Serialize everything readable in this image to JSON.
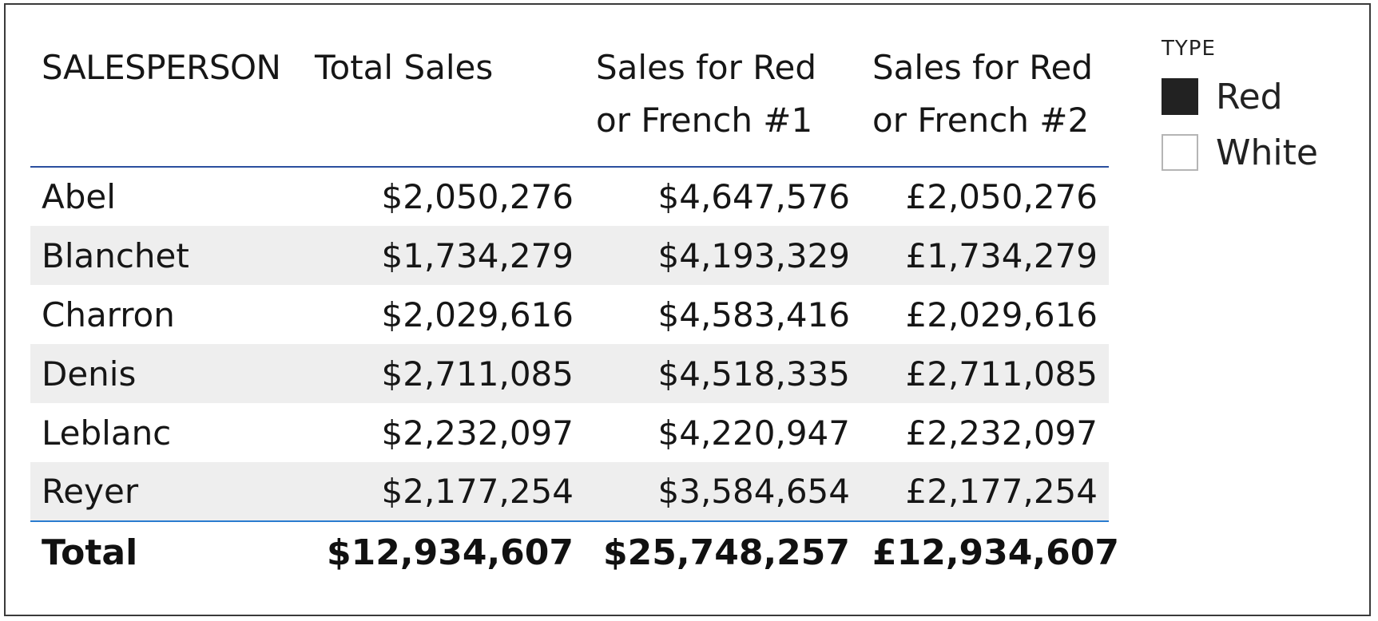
{
  "table": {
    "columns": [
      "SALESPERSON",
      "Total Sales",
      "Sales for Red or French #1",
      "Sales for Red or French #2"
    ],
    "header_lines": {
      "red1_line1": "Sales for Red",
      "red1_line2": "or French #1",
      "red2_line1": "Sales for Red",
      "red2_line2": "or French #2"
    },
    "rows": [
      {
        "name": "Abel",
        "total_sales": "$2,050,276",
        "red_french_1": "$4,647,576",
        "red_french_2": "£2,050,276"
      },
      {
        "name": "Blanchet",
        "total_sales": "$1,734,279",
        "red_french_1": "$4,193,329",
        "red_french_2": "£1,734,279"
      },
      {
        "name": "Charron",
        "total_sales": "$2,029,616",
        "red_french_1": "$4,583,416",
        "red_french_2": "£2,029,616"
      },
      {
        "name": "Denis",
        "total_sales": "$2,711,085",
        "red_french_1": "$4,518,335",
        "red_french_2": "£2,711,085"
      },
      {
        "name": "Leblanc",
        "total_sales": "$2,232,097",
        "red_french_1": "$4,220,947",
        "red_french_2": "£2,232,097"
      },
      {
        "name": "Reyer",
        "total_sales": "$2,177,254",
        "red_french_1": "$3,584,654",
        "red_french_2": "£2,177,254"
      }
    ],
    "total": {
      "label": "Total",
      "total_sales": "$12,934,607",
      "red_french_1": "$25,748,257",
      "red_french_2": "£12,934,607"
    }
  },
  "slicer": {
    "title": "TYPE",
    "items": [
      {
        "label": "Red",
        "selected": true,
        "swatch_fill": "#222222",
        "swatch_border": "#222222"
      },
      {
        "label": "White",
        "selected": false,
        "swatch_fill": "#ffffff",
        "swatch_border": "#b5b5b5"
      }
    ]
  },
  "colors": {
    "header_rule": "#2b4f9e",
    "total_rule": "#2a7ccf",
    "band_row": "#eeeeee"
  }
}
